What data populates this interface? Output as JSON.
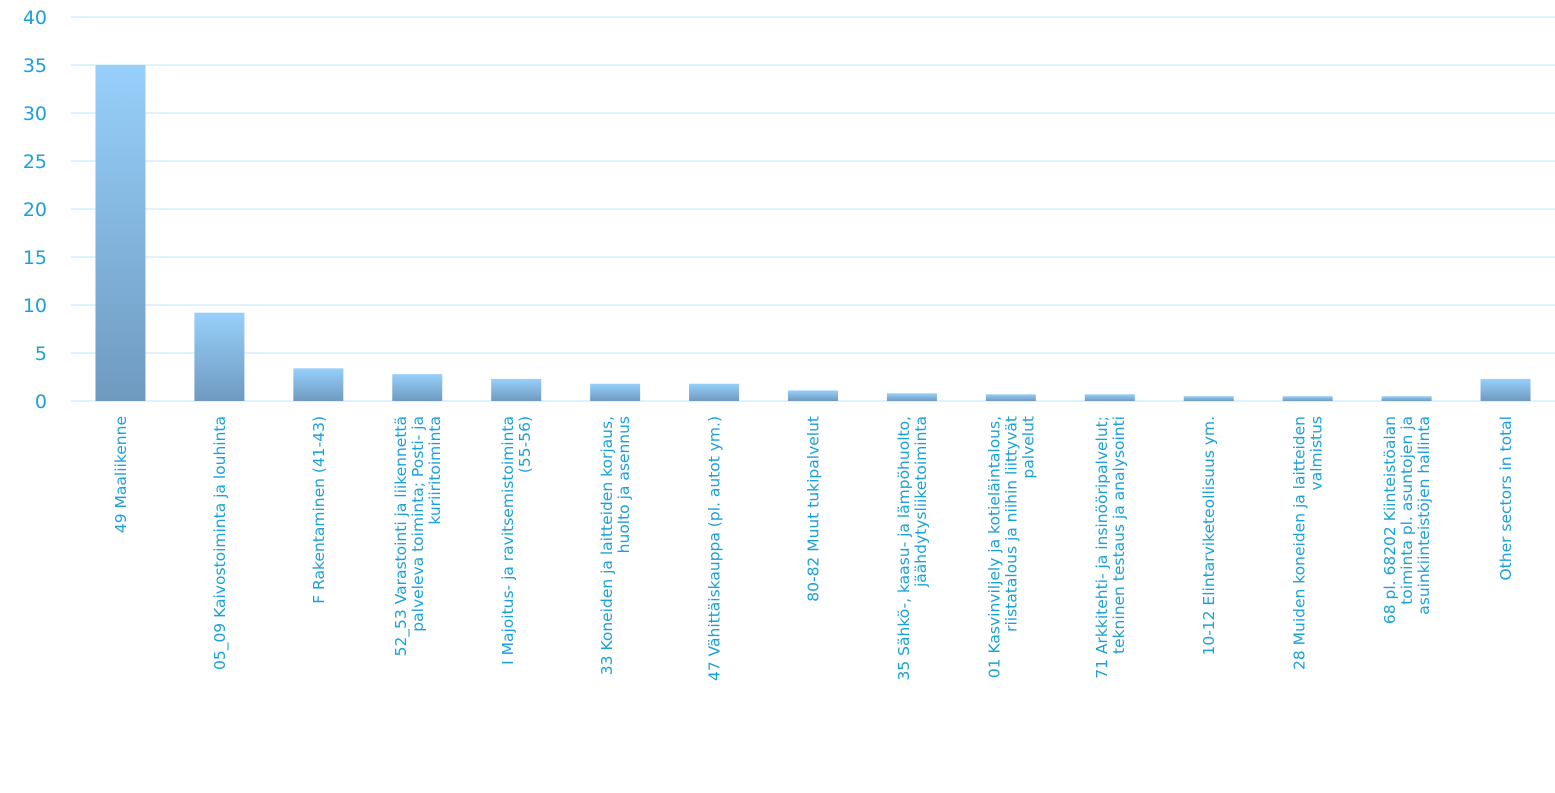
{
  "colors": {
    "label": "#1ba1d8",
    "grid": "#d6eefa",
    "bar_top": "#97d0fb",
    "bar_bottom": "#6f9ac0"
  },
  "chart_data": {
    "type": "bar",
    "title": "",
    "xlabel": "",
    "ylabel": "",
    "ylim": [
      0,
      40
    ],
    "yticks": [
      0,
      5,
      10,
      15,
      20,
      25,
      30,
      35,
      40
    ],
    "grid": true,
    "legend": "none",
    "categories": [
      [
        "49 Maaliikenne"
      ],
      [
        "05_09 Kaivostoiminta ja louhinta"
      ],
      [
        "F Rakentaminen (41-43)"
      ],
      [
        "52_53 Varastointi ja liikennettä",
        "palveleva toiminta; Posti- ja",
        "kuriiritoiminta"
      ],
      [
        "I Majoitus- ja ravitsemistoiminta",
        "(55-56)"
      ],
      [
        "33 Koneiden ja laitteiden korjaus,",
        "huolto ja asennus"
      ],
      [
        "47 Vähittäiskauppa (pl. autot ym.)"
      ],
      [
        "80-82 Muut tukipalvelut"
      ],
      [
        "35 Sähkö-, kaasu- ja lämpöhuolto,",
        "jäähdytysliiketoiminta"
      ],
      [
        "01 Kasvinviljely ja kotieläintalous,",
        "riistatalous ja niihin liittyvät",
        "palvelut"
      ],
      [
        "71 Arkkitehti- ja insinööripalvelut;",
        "tekninen testaus ja analysointi"
      ],
      [
        "10-12 Elintarviketeollisuus ym."
      ],
      [
        "28 Muiden koneiden ja laitteiden",
        "valmistus"
      ],
      [
        "68 pl. 68202 Kiinteistöalan",
        "toiminta pl. asuntojen ja",
        "asuinkiinteistöjen hallinta"
      ],
      [
        "Other sectors in total"
      ]
    ],
    "values": [
      35,
      9.2,
      3.4,
      2.8,
      2.3,
      1.8,
      1.8,
      1.1,
      0.8,
      0.7,
      0.7,
      0.5,
      0.5,
      0.5,
      2.3
    ]
  }
}
